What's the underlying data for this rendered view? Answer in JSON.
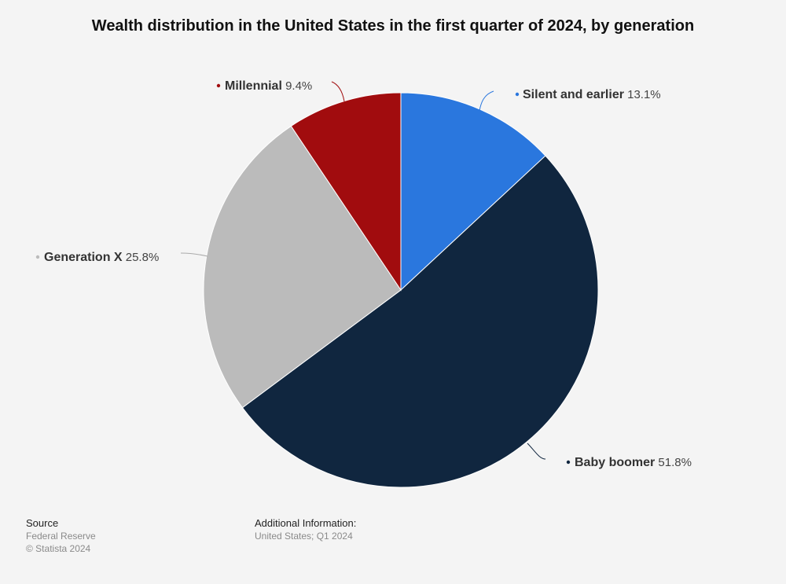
{
  "chart_data": {
    "type": "pie",
    "title": "Wealth distribution in the United States in the first quarter of 2024, by generation",
    "unit": "%",
    "slices": [
      {
        "label": "Silent and earlier",
        "value": 13.1,
        "color": "#2a77de"
      },
      {
        "label": "Baby boomer",
        "value": 51.8,
        "color": "#10263f"
      },
      {
        "label": "Generation X",
        "value": 25.8,
        "color": "#bbbbbb"
      },
      {
        "label": "Millennial",
        "value": 9.4,
        "color": "#a10c0e"
      }
    ]
  },
  "footer": {
    "source_label": "Source",
    "source_value": "Federal Reserve",
    "copyright": "© Statista 2024",
    "additional_label": "Additional Information:",
    "additional_value": "United States; Q1 2024"
  }
}
